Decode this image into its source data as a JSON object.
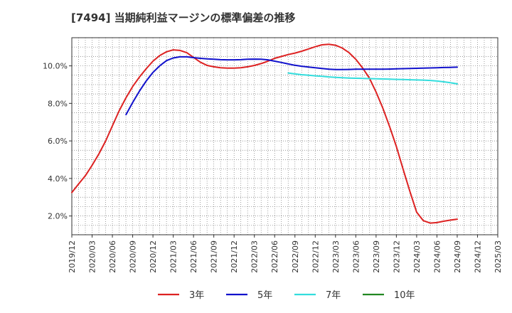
{
  "chart_data": {
    "type": "line",
    "title": "[7494]  当期純利益マージンの標準偏差の推移",
    "xlabel": "",
    "ylabel": "",
    "x_ticks": [
      "2019/12",
      "2020/03",
      "2020/06",
      "2020/09",
      "2020/12",
      "2021/03",
      "2021/06",
      "2021/09",
      "2021/12",
      "2022/03",
      "2022/06",
      "2022/09",
      "2022/12",
      "2023/03",
      "2023/06",
      "2023/09",
      "2023/12",
      "2024/03",
      "2024/06",
      "2024/09",
      "2024/12",
      "2025/03"
    ],
    "y_ticks": [
      2.0,
      4.0,
      6.0,
      8.0,
      10.0
    ],
    "y_tick_labels": [
      "2.0%",
      "4.0%",
      "6.0%",
      "8.0%",
      "10.0%"
    ],
    "ylim": [
      1.0,
      11.5
    ],
    "x_range": [
      0,
      21
    ],
    "grid": true,
    "legend_position": "bottom",
    "series": [
      {
        "name": "3年",
        "color": "#dd2222",
        "points": [
          [
            0,
            3.25
          ],
          [
            0.33,
            3.7
          ],
          [
            0.67,
            4.15
          ],
          [
            1,
            4.7
          ],
          [
            1.33,
            5.3
          ],
          [
            1.67,
            6.0
          ],
          [
            2,
            6.8
          ],
          [
            2.33,
            7.6
          ],
          [
            2.67,
            8.3
          ],
          [
            3,
            8.9
          ],
          [
            3.33,
            9.4
          ],
          [
            3.67,
            9.85
          ],
          [
            4,
            10.25
          ],
          [
            4.33,
            10.55
          ],
          [
            4.67,
            10.75
          ],
          [
            5,
            10.85
          ],
          [
            5.33,
            10.82
          ],
          [
            5.67,
            10.7
          ],
          [
            6,
            10.45
          ],
          [
            6.33,
            10.2
          ],
          [
            6.67,
            10.02
          ],
          [
            7,
            9.95
          ],
          [
            7.33,
            9.9
          ],
          [
            7.67,
            9.88
          ],
          [
            8,
            9.88
          ],
          [
            8.33,
            9.9
          ],
          [
            8.67,
            9.95
          ],
          [
            9,
            10.02
          ],
          [
            9.33,
            10.12
          ],
          [
            9.67,
            10.25
          ],
          [
            10,
            10.4
          ],
          [
            10.33,
            10.5
          ],
          [
            10.67,
            10.6
          ],
          [
            11,
            10.68
          ],
          [
            11.33,
            10.78
          ],
          [
            11.67,
            10.9
          ],
          [
            12,
            11.02
          ],
          [
            12.33,
            11.12
          ],
          [
            12.67,
            11.15
          ],
          [
            13,
            11.1
          ],
          [
            13.33,
            10.95
          ],
          [
            13.67,
            10.7
          ],
          [
            14,
            10.35
          ],
          [
            14.33,
            9.9
          ],
          [
            14.67,
            9.35
          ],
          [
            15,
            8.6
          ],
          [
            15.33,
            7.75
          ],
          [
            15.67,
            6.75
          ],
          [
            16,
            5.7
          ],
          [
            16.33,
            4.5
          ],
          [
            16.67,
            3.3
          ],
          [
            17,
            2.2
          ],
          [
            17.33,
            1.75
          ],
          [
            17.67,
            1.62
          ],
          [
            18,
            1.65
          ],
          [
            18.33,
            1.72
          ],
          [
            18.67,
            1.78
          ],
          [
            19,
            1.83
          ]
        ]
      },
      {
        "name": "5年",
        "color": "#1111cc",
        "points": [
          [
            2.67,
            7.4
          ],
          [
            3,
            8.05
          ],
          [
            3.33,
            8.65
          ],
          [
            3.67,
            9.2
          ],
          [
            4,
            9.65
          ],
          [
            4.33,
            10.0
          ],
          [
            4.67,
            10.28
          ],
          [
            5,
            10.42
          ],
          [
            5.33,
            10.48
          ],
          [
            5.67,
            10.48
          ],
          [
            6,
            10.44
          ],
          [
            6.33,
            10.4
          ],
          [
            6.67,
            10.37
          ],
          [
            7,
            10.35
          ],
          [
            7.33,
            10.33
          ],
          [
            7.67,
            10.32
          ],
          [
            8,
            10.32
          ],
          [
            8.33,
            10.33
          ],
          [
            8.67,
            10.35
          ],
          [
            9,
            10.36
          ],
          [
            9.33,
            10.35
          ],
          [
            9.67,
            10.32
          ],
          [
            10,
            10.25
          ],
          [
            10.33,
            10.18
          ],
          [
            10.67,
            10.1
          ],
          [
            11,
            10.03
          ],
          [
            11.33,
            9.98
          ],
          [
            11.67,
            9.94
          ],
          [
            12,
            9.9
          ],
          [
            12.33,
            9.86
          ],
          [
            12.67,
            9.82
          ],
          [
            13,
            9.8
          ],
          [
            13.33,
            9.8
          ],
          [
            13.67,
            9.81
          ],
          [
            14,
            9.82
          ],
          [
            14.33,
            9.82
          ],
          [
            14.67,
            9.82
          ],
          [
            15,
            9.82
          ],
          [
            15.33,
            9.82
          ],
          [
            15.67,
            9.83
          ],
          [
            16,
            9.84
          ],
          [
            16.33,
            9.85
          ],
          [
            16.67,
            9.86
          ],
          [
            17,
            9.87
          ],
          [
            17.33,
            9.88
          ],
          [
            17.67,
            9.89
          ],
          [
            18,
            9.9
          ],
          [
            18.33,
            9.91
          ],
          [
            18.67,
            9.92
          ],
          [
            19,
            9.93
          ]
        ]
      },
      {
        "name": "7年",
        "color": "#33dddd",
        "points": [
          [
            10.67,
            9.62
          ],
          [
            11,
            9.57
          ],
          [
            11.33,
            9.53
          ],
          [
            11.67,
            9.5
          ],
          [
            12,
            9.47
          ],
          [
            12.33,
            9.44
          ],
          [
            12.67,
            9.41
          ],
          [
            13,
            9.39
          ],
          [
            13.33,
            9.37
          ],
          [
            13.67,
            9.35
          ],
          [
            14,
            9.34
          ],
          [
            14.33,
            9.33
          ],
          [
            14.67,
            9.32
          ],
          [
            15,
            9.31
          ],
          [
            15.33,
            9.3
          ],
          [
            15.67,
            9.29
          ],
          [
            16,
            9.28
          ],
          [
            16.33,
            9.27
          ],
          [
            16.67,
            9.26
          ],
          [
            17,
            9.25
          ],
          [
            17.33,
            9.24
          ],
          [
            17.67,
            9.22
          ],
          [
            18,
            9.19
          ],
          [
            18.33,
            9.15
          ],
          [
            18.67,
            9.1
          ],
          [
            19,
            9.04
          ]
        ]
      },
      {
        "name": "10年",
        "color": "#228822",
        "points": []
      }
    ]
  }
}
